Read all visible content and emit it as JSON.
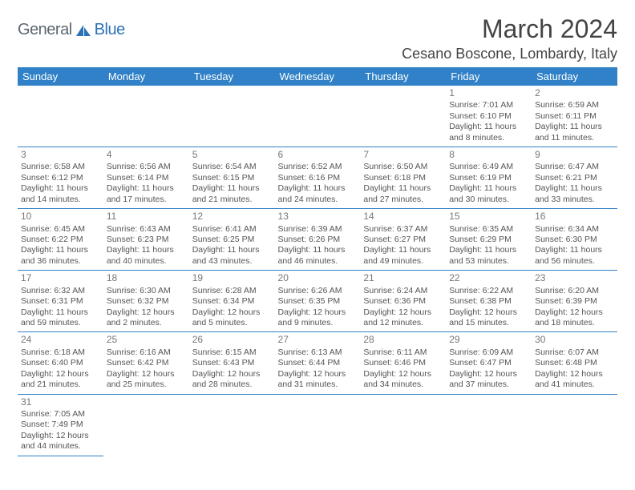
{
  "brand": {
    "general": "General",
    "blue": "Blue"
  },
  "header": {
    "month": "March 2024",
    "location": "Cesano Boscone, Lombardy, Italy"
  },
  "colors": {
    "header_bg": "#3081c7",
    "header_text": "#ffffff",
    "cell_border": "#3081c7",
    "body_text": "#555555",
    "date_text": "#777777"
  },
  "dayNames": [
    "Sunday",
    "Monday",
    "Tuesday",
    "Wednesday",
    "Thursday",
    "Friday",
    "Saturday"
  ],
  "startOffset": 5,
  "days": [
    {
      "n": 1,
      "sr": "7:01 AM",
      "ss": "6:10 PM",
      "dl": "11 hours and 8 minutes."
    },
    {
      "n": 2,
      "sr": "6:59 AM",
      "ss": "6:11 PM",
      "dl": "11 hours and 11 minutes."
    },
    {
      "n": 3,
      "sr": "6:58 AM",
      "ss": "6:12 PM",
      "dl": "11 hours and 14 minutes."
    },
    {
      "n": 4,
      "sr": "6:56 AM",
      "ss": "6:14 PM",
      "dl": "11 hours and 17 minutes."
    },
    {
      "n": 5,
      "sr": "6:54 AM",
      "ss": "6:15 PM",
      "dl": "11 hours and 21 minutes."
    },
    {
      "n": 6,
      "sr": "6:52 AM",
      "ss": "6:16 PM",
      "dl": "11 hours and 24 minutes."
    },
    {
      "n": 7,
      "sr": "6:50 AM",
      "ss": "6:18 PM",
      "dl": "11 hours and 27 minutes."
    },
    {
      "n": 8,
      "sr": "6:49 AM",
      "ss": "6:19 PM",
      "dl": "11 hours and 30 minutes."
    },
    {
      "n": 9,
      "sr": "6:47 AM",
      "ss": "6:21 PM",
      "dl": "11 hours and 33 minutes."
    },
    {
      "n": 10,
      "sr": "6:45 AM",
      "ss": "6:22 PM",
      "dl": "11 hours and 36 minutes."
    },
    {
      "n": 11,
      "sr": "6:43 AM",
      "ss": "6:23 PM",
      "dl": "11 hours and 40 minutes."
    },
    {
      "n": 12,
      "sr": "6:41 AM",
      "ss": "6:25 PM",
      "dl": "11 hours and 43 minutes."
    },
    {
      "n": 13,
      "sr": "6:39 AM",
      "ss": "6:26 PM",
      "dl": "11 hours and 46 minutes."
    },
    {
      "n": 14,
      "sr": "6:37 AM",
      "ss": "6:27 PM",
      "dl": "11 hours and 49 minutes."
    },
    {
      "n": 15,
      "sr": "6:35 AM",
      "ss": "6:29 PM",
      "dl": "11 hours and 53 minutes."
    },
    {
      "n": 16,
      "sr": "6:34 AM",
      "ss": "6:30 PM",
      "dl": "11 hours and 56 minutes."
    },
    {
      "n": 17,
      "sr": "6:32 AM",
      "ss": "6:31 PM",
      "dl": "11 hours and 59 minutes."
    },
    {
      "n": 18,
      "sr": "6:30 AM",
      "ss": "6:32 PM",
      "dl": "12 hours and 2 minutes."
    },
    {
      "n": 19,
      "sr": "6:28 AM",
      "ss": "6:34 PM",
      "dl": "12 hours and 5 minutes."
    },
    {
      "n": 20,
      "sr": "6:26 AM",
      "ss": "6:35 PM",
      "dl": "12 hours and 9 minutes."
    },
    {
      "n": 21,
      "sr": "6:24 AM",
      "ss": "6:36 PM",
      "dl": "12 hours and 12 minutes."
    },
    {
      "n": 22,
      "sr": "6:22 AM",
      "ss": "6:38 PM",
      "dl": "12 hours and 15 minutes."
    },
    {
      "n": 23,
      "sr": "6:20 AM",
      "ss": "6:39 PM",
      "dl": "12 hours and 18 minutes."
    },
    {
      "n": 24,
      "sr": "6:18 AM",
      "ss": "6:40 PM",
      "dl": "12 hours and 21 minutes."
    },
    {
      "n": 25,
      "sr": "6:16 AM",
      "ss": "6:42 PM",
      "dl": "12 hours and 25 minutes."
    },
    {
      "n": 26,
      "sr": "6:15 AM",
      "ss": "6:43 PM",
      "dl": "12 hours and 28 minutes."
    },
    {
      "n": 27,
      "sr": "6:13 AM",
      "ss": "6:44 PM",
      "dl": "12 hours and 31 minutes."
    },
    {
      "n": 28,
      "sr": "6:11 AM",
      "ss": "6:46 PM",
      "dl": "12 hours and 34 minutes."
    },
    {
      "n": 29,
      "sr": "6:09 AM",
      "ss": "6:47 PM",
      "dl": "12 hours and 37 minutes."
    },
    {
      "n": 30,
      "sr": "6:07 AM",
      "ss": "6:48 PM",
      "dl": "12 hours and 41 minutes."
    },
    {
      "n": 31,
      "sr": "7:05 AM",
      "ss": "7:49 PM",
      "dl": "12 hours and 44 minutes."
    }
  ],
  "labels": {
    "sunrise": "Sunrise:",
    "sunset": "Sunset:",
    "daylight": "Daylight:"
  }
}
